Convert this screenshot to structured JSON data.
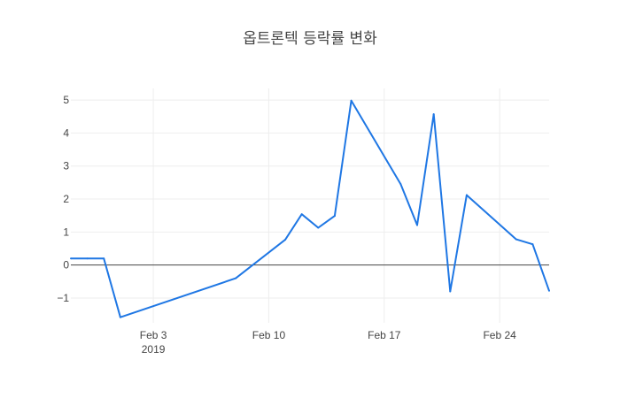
{
  "chart_data": {
    "type": "line",
    "title": "옵트론텍 등락률 변화",
    "xlabel": "",
    "ylabel": "",
    "x_ticks": [
      {
        "date": "2019-02-03",
        "label": "Feb 3",
        "sublabel": "2019"
      },
      {
        "date": "2019-02-10",
        "label": "Feb 10",
        "sublabel": ""
      },
      {
        "date": "2019-02-17",
        "label": "Feb 17",
        "sublabel": ""
      },
      {
        "date": "2019-02-24",
        "label": "Feb 24",
        "sublabel": ""
      }
    ],
    "y_ticks": [
      -1,
      0,
      1,
      2,
      3,
      4,
      5
    ],
    "y_tick_labels": [
      "−1",
      "0",
      "1",
      "2",
      "3",
      "4",
      "5"
    ],
    "xlim": [
      "2019-01-29",
      "2019-02-27"
    ],
    "ylim": [
      -1.75,
      5.35
    ],
    "grid": true,
    "series_color": "#1f77e4",
    "series": [
      {
        "x": [
          "2019-01-29",
          "2019-01-30",
          "2019-01-31",
          "2019-02-01",
          "2019-02-08",
          "2019-02-11",
          "2019-02-12",
          "2019-02-13",
          "2019-02-14",
          "2019-02-15",
          "2019-02-18",
          "2019-02-19",
          "2019-02-20",
          "2019-02-21",
          "2019-02-22",
          "2019-02-25",
          "2019-02-26",
          "2019-02-27"
        ],
        "values": [
          0.2,
          0.2,
          0.2,
          -1.58,
          -0.4,
          0.77,
          1.54,
          1.13,
          1.49,
          4.98,
          2.45,
          1.21,
          4.57,
          -0.8,
          2.12,
          0.78,
          0.63,
          -0.78
        ]
      }
    ]
  }
}
